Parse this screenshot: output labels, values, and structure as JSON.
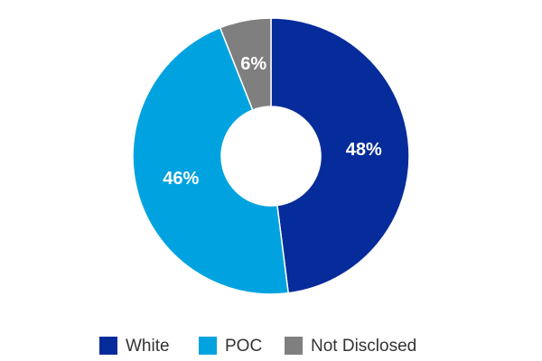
{
  "chart_data": {
    "type": "donut",
    "categories": [
      "White",
      "POC",
      "Not Disclosed"
    ],
    "values": [
      48,
      46,
      6
    ],
    "value_labels": [
      "48%",
      "46%",
      "6%"
    ],
    "colors": [
      "#062c9b",
      "#00a3e0",
      "#7f7f7f"
    ],
    "legend": "bottom"
  }
}
